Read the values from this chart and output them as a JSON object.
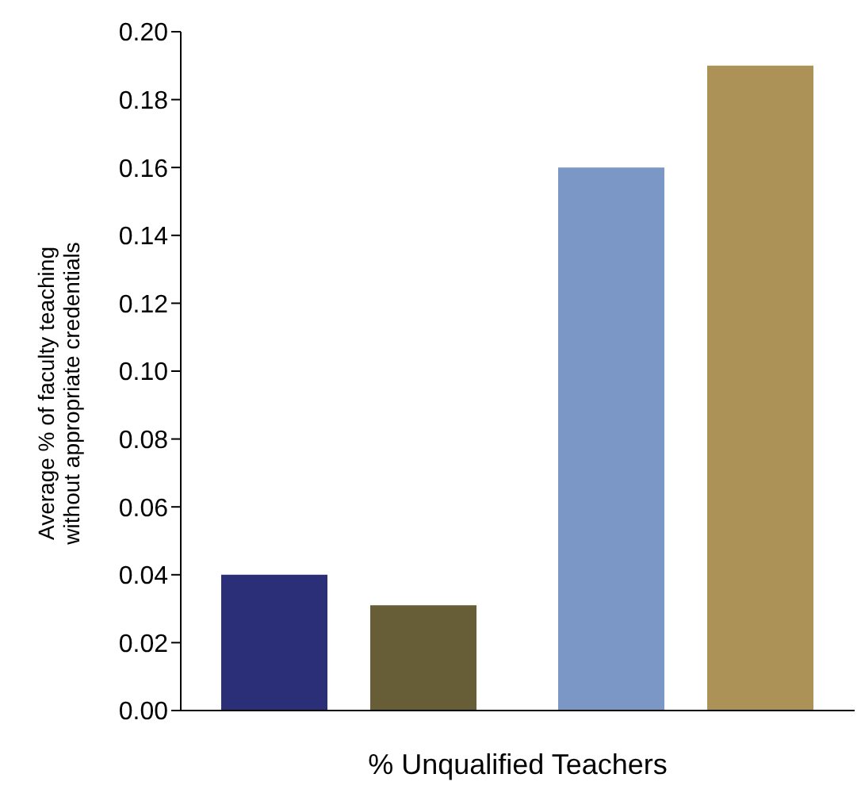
{
  "chart_data": {
    "type": "bar",
    "xlabel": "% Unqualified Teachers",
    "ylabel": "Average % of faculty teaching\nwithout appropriate credentials",
    "categories": [
      null,
      null
    ],
    "series": [
      {
        "colors": [
          "#2b2f78",
          "#7a97c6"
        ],
        "values": [
          0.04,
          0.16
        ]
      },
      {
        "colors": [
          "#675d37",
          "#ad9257"
        ],
        "values": [
          0.031,
          0.19
        ]
      }
    ],
    "ylim": [
      0,
      0.2
    ],
    "yticks": [
      {
        "value": 0,
        "label": "0.00"
      },
      {
        "value": 0.02,
        "label": "0.02"
      },
      {
        "value": 0.04,
        "label": "0.04"
      },
      {
        "value": 0.06,
        "label": "0.06"
      },
      {
        "value": 0.08,
        "label": "0.08"
      },
      {
        "value": 0.1,
        "label": "0.10"
      },
      {
        "value": 0.12,
        "label": "0.12"
      },
      {
        "value": 0.14,
        "label": "0.14"
      },
      {
        "value": 0.16,
        "label": "0.16"
      },
      {
        "value": 0.18,
        "label": "0.18"
      },
      {
        "value": 0.2,
        "label": "0.20"
      }
    ],
    "grid": false,
    "legend": false
  }
}
